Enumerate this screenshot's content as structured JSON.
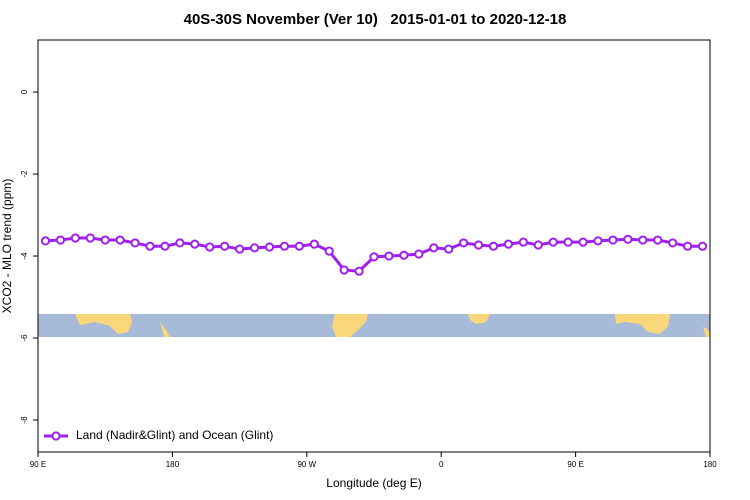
{
  "chart_data": {
    "type": "line",
    "title": "40S-30S November (Ver 10)   2015-01-01 to 2020-12-18",
    "x_label": "Longitude (deg E)",
    "y_label": "XCO2 - MLO trend (ppm)",
    "x": [
      95,
      105,
      115,
      125,
      135,
      145,
      155,
      165,
      175,
      185,
      195,
      205,
      215,
      225,
      235,
      245,
      255,
      265,
      275,
      285,
      295,
      305,
      315,
      325,
      335,
      345,
      355,
      365,
      375,
      385,
      395,
      405,
      415,
      425,
      435,
      445,
      455,
      465,
      475,
      485,
      495,
      505,
      515,
      525,
      535
    ],
    "series": [
      {
        "name": "Land (Nadir&Glint) and Ocean (Glint)",
        "color": "#a020f0",
        "values": [
          -3.63,
          -3.61,
          -3.56,
          -3.56,
          -3.61,
          -3.61,
          -3.68,
          -3.76,
          -3.76,
          -3.68,
          -3.71,
          -3.78,
          -3.76,
          -3.83,
          -3.8,
          -3.78,
          -3.76,
          -3.76,
          -3.71,
          -3.88,
          -4.34,
          -4.37,
          -4.02,
          -4.0,
          -3.98,
          -3.95,
          -3.8,
          -3.83,
          -3.68,
          -3.73,
          -3.76,
          -3.71,
          -3.66,
          -3.73,
          -3.66,
          -3.66,
          -3.66,
          -3.63,
          -3.61,
          -3.59,
          -3.61,
          -3.61,
          -3.68,
          -3.76,
          -3.76
        ]
      }
    ],
    "xlim": [
      90,
      540
    ],
    "xticks": [
      {
        "value": 90,
        "label": "90 E"
      },
      {
        "value": 180,
        "label": "180"
      },
      {
        "value": 270,
        "label": "90 W"
      },
      {
        "value": 360,
        "label": "0"
      },
      {
        "value": 450,
        "label": "90 E"
      },
      {
        "value": 540,
        "label": "180"
      }
    ],
    "ylim": [
      -8.78,
      1.27
    ],
    "yticks": [
      0,
      -2,
      -4,
      -6,
      -8
    ],
    "legend": "bottom-left"
  }
}
